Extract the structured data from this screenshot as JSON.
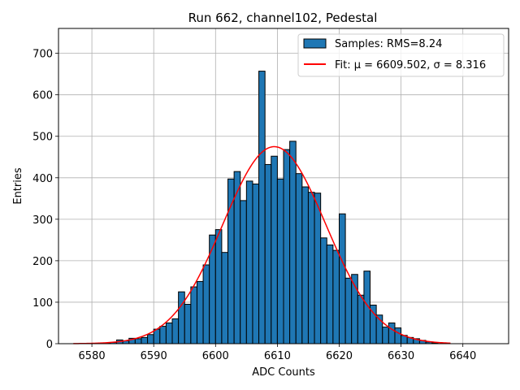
{
  "chart_data": {
    "type": "bar",
    "title": "Run 662, channel102, Pedestal",
    "xlabel": "ADC Counts",
    "ylabel": "Entries",
    "xlim": [
      6574.6,
      6647.4
    ],
    "ylim": [
      0,
      760
    ],
    "grid": true,
    "legend_position": "top-right",
    "x_ticks": [
      6580,
      6590,
      6600,
      6610,
      6620,
      6630,
      6640
    ],
    "y_ticks": [
      0,
      100,
      200,
      300,
      400,
      500,
      600,
      700
    ],
    "histogram": {
      "label": "Samples: RMS=8.24",
      "bin_width": 1,
      "bin_starts": [
        6582,
        6583,
        6584,
        6585,
        6586,
        6587,
        6588,
        6589,
        6590,
        6591,
        6592,
        6593,
        6594,
        6595,
        6596,
        6597,
        6598,
        6599,
        6600,
        6601,
        6602,
        6603,
        6604,
        6605,
        6606,
        6607,
        6608,
        6609,
        6610,
        6611,
        6612,
        6613,
        6614,
        6615,
        6616,
        6617,
        6618,
        6619,
        6620,
        6621,
        6622,
        6623,
        6624,
        6625,
        6626,
        6627,
        6628,
        6629,
        6630,
        6631,
        6632,
        6633,
        6634,
        6635
      ],
      "counts": [
        2,
        3,
        9,
        7,
        13,
        12,
        15,
        22,
        35,
        42,
        50,
        60,
        125,
        95,
        137,
        150,
        190,
        262,
        275,
        220,
        397,
        415,
        345,
        392,
        385,
        657,
        432,
        452,
        397,
        468,
        488,
        410,
        378,
        365,
        363,
        255,
        238,
        225,
        313,
        158,
        167,
        117,
        175,
        93,
        69,
        40,
        50,
        38,
        20,
        15,
        12,
        8,
        4,
        2
      ],
      "fill_color": "#1f77b4",
      "edge_color": "#000000"
    },
    "fit": {
      "label": "Fit: μ = 6609.502, σ = 8.316",
      "mu": 6609.502,
      "sigma": 8.316,
      "amplitude": 475,
      "x_range": [
        6577,
        6638
      ],
      "color": "#ff0000"
    }
  }
}
